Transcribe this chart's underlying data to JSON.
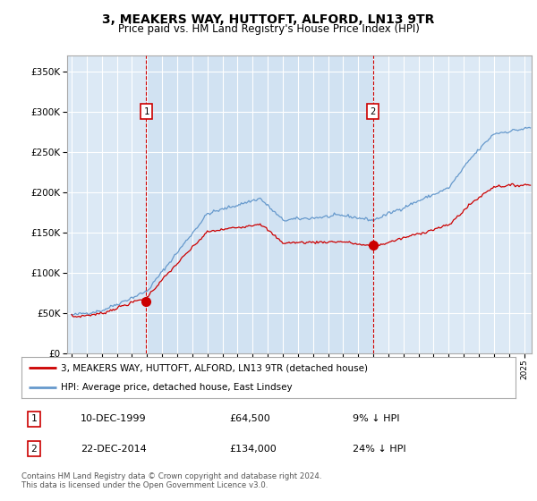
{
  "title": "3, MEAKERS WAY, HUTTOFT, ALFORD, LN13 9TR",
  "subtitle": "Price paid vs. HM Land Registry's House Price Index (HPI)",
  "legend_house": "3, MEAKERS WAY, HUTTOFT, ALFORD, LN13 9TR (detached house)",
  "legend_hpi": "HPI: Average price, detached house, East Lindsey",
  "sale1_date": "10-DEC-1999",
  "sale1_price": 64500,
  "sale1_label": "9% ↓ HPI",
  "sale2_date": "22-DEC-2014",
  "sale2_price": 134000,
  "sale2_label": "24% ↓ HPI",
  "footer": "Contains HM Land Registry data © Crown copyright and database right 2024.\nThis data is licensed under the Open Government Licence v3.0.",
  "ylim": [
    0,
    370000
  ],
  "yticks": [
    0,
    50000,
    100000,
    150000,
    200000,
    250000,
    300000,
    350000
  ],
  "plot_bg": "#dce9f5",
  "line_house_color": "#cc0000",
  "line_hpi_color": "#6699cc",
  "vline_color": "#cc0000",
  "marker_color": "#cc0000",
  "sale1_x": 1999.95,
  "sale2_x": 2014.97
}
